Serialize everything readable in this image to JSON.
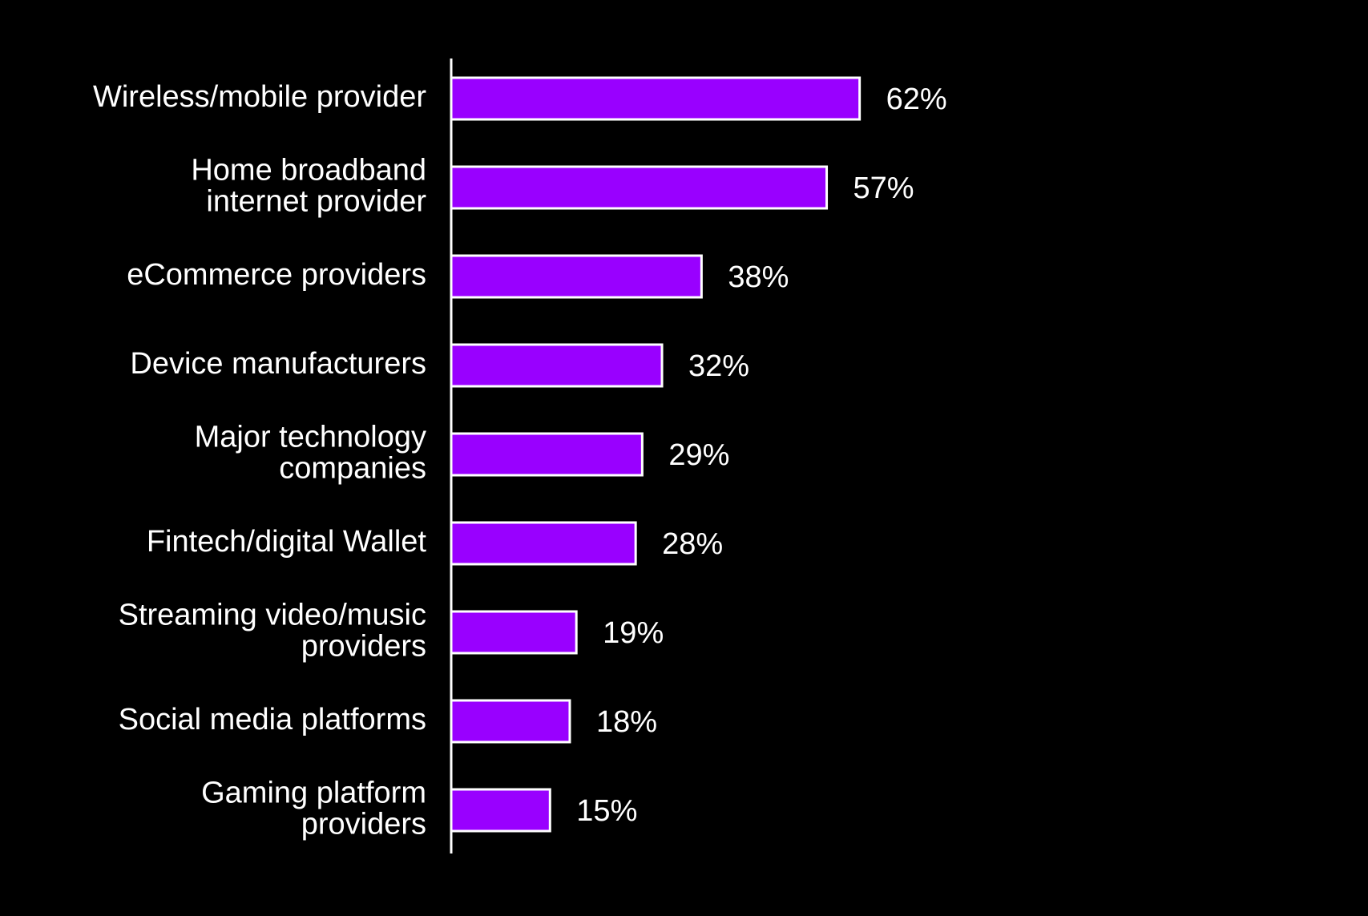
{
  "chart_data": {
    "type": "bar",
    "orientation": "horizontal",
    "categories": [
      "Wireless/mobile provider",
      [
        "Home broadband",
        "internet provider"
      ],
      "eCommerce providers",
      "Device manufacturers",
      [
        "Major technology",
        "companies"
      ],
      "Fintech/digital Wallet",
      [
        "Streaming video/music",
        "providers"
      ],
      "Social media platforms",
      [
        "Gaming platform",
        "providers"
      ]
    ],
    "values": [
      62,
      57,
      38,
      32,
      29,
      28,
      19,
      18,
      15
    ],
    "value_labels": [
      "62%",
      "57%",
      "38%",
      "32%",
      "29%",
      "28%",
      "19%",
      "18%",
      "15%"
    ],
    "color": "#9900ff"
  }
}
